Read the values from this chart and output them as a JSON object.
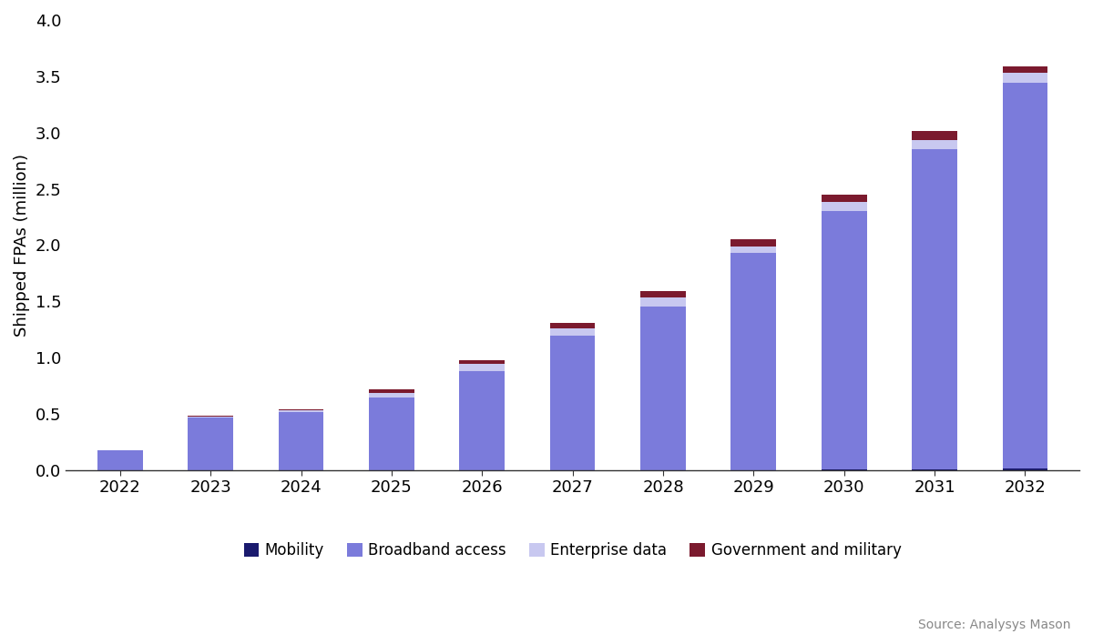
{
  "years": [
    2022,
    2023,
    2024,
    2025,
    2026,
    2027,
    2028,
    2029,
    2030,
    2031,
    2032
  ],
  "mobility": [
    0.002,
    0.002,
    0.002,
    0.002,
    0.002,
    0.002,
    0.002,
    0.002,
    0.01,
    0.01,
    0.015
  ],
  "broadband_access": [
    0.175,
    0.465,
    0.515,
    0.645,
    0.875,
    1.19,
    1.455,
    1.93,
    2.295,
    2.845,
    3.43
  ],
  "enterprise_data": [
    0.0,
    0.008,
    0.012,
    0.04,
    0.065,
    0.065,
    0.075,
    0.058,
    0.08,
    0.08,
    0.085
  ],
  "government_military": [
    0.0,
    0.01,
    0.013,
    0.028,
    0.038,
    0.052,
    0.062,
    0.065,
    0.065,
    0.082,
    0.06
  ],
  "color_mobility": "#1a1a6e",
  "color_broadband": "#7b7bdb",
  "color_enterprise": "#c8c8f0",
  "color_government": "#7b1a2e",
  "ylabel": "Shipped FPAs (million)",
  "ylim": [
    0,
    4.0
  ],
  "yticks": [
    0.0,
    0.5,
    1.0,
    1.5,
    2.0,
    2.5,
    3.0,
    3.5,
    4.0
  ],
  "legend_labels": [
    "Mobility",
    "Broadband access",
    "Enterprise data",
    "Government and military"
  ],
  "source_text": "Source: Analysys Mason",
  "background_color": "#ffffff",
  "tick_fontsize": 13,
  "label_fontsize": 13
}
